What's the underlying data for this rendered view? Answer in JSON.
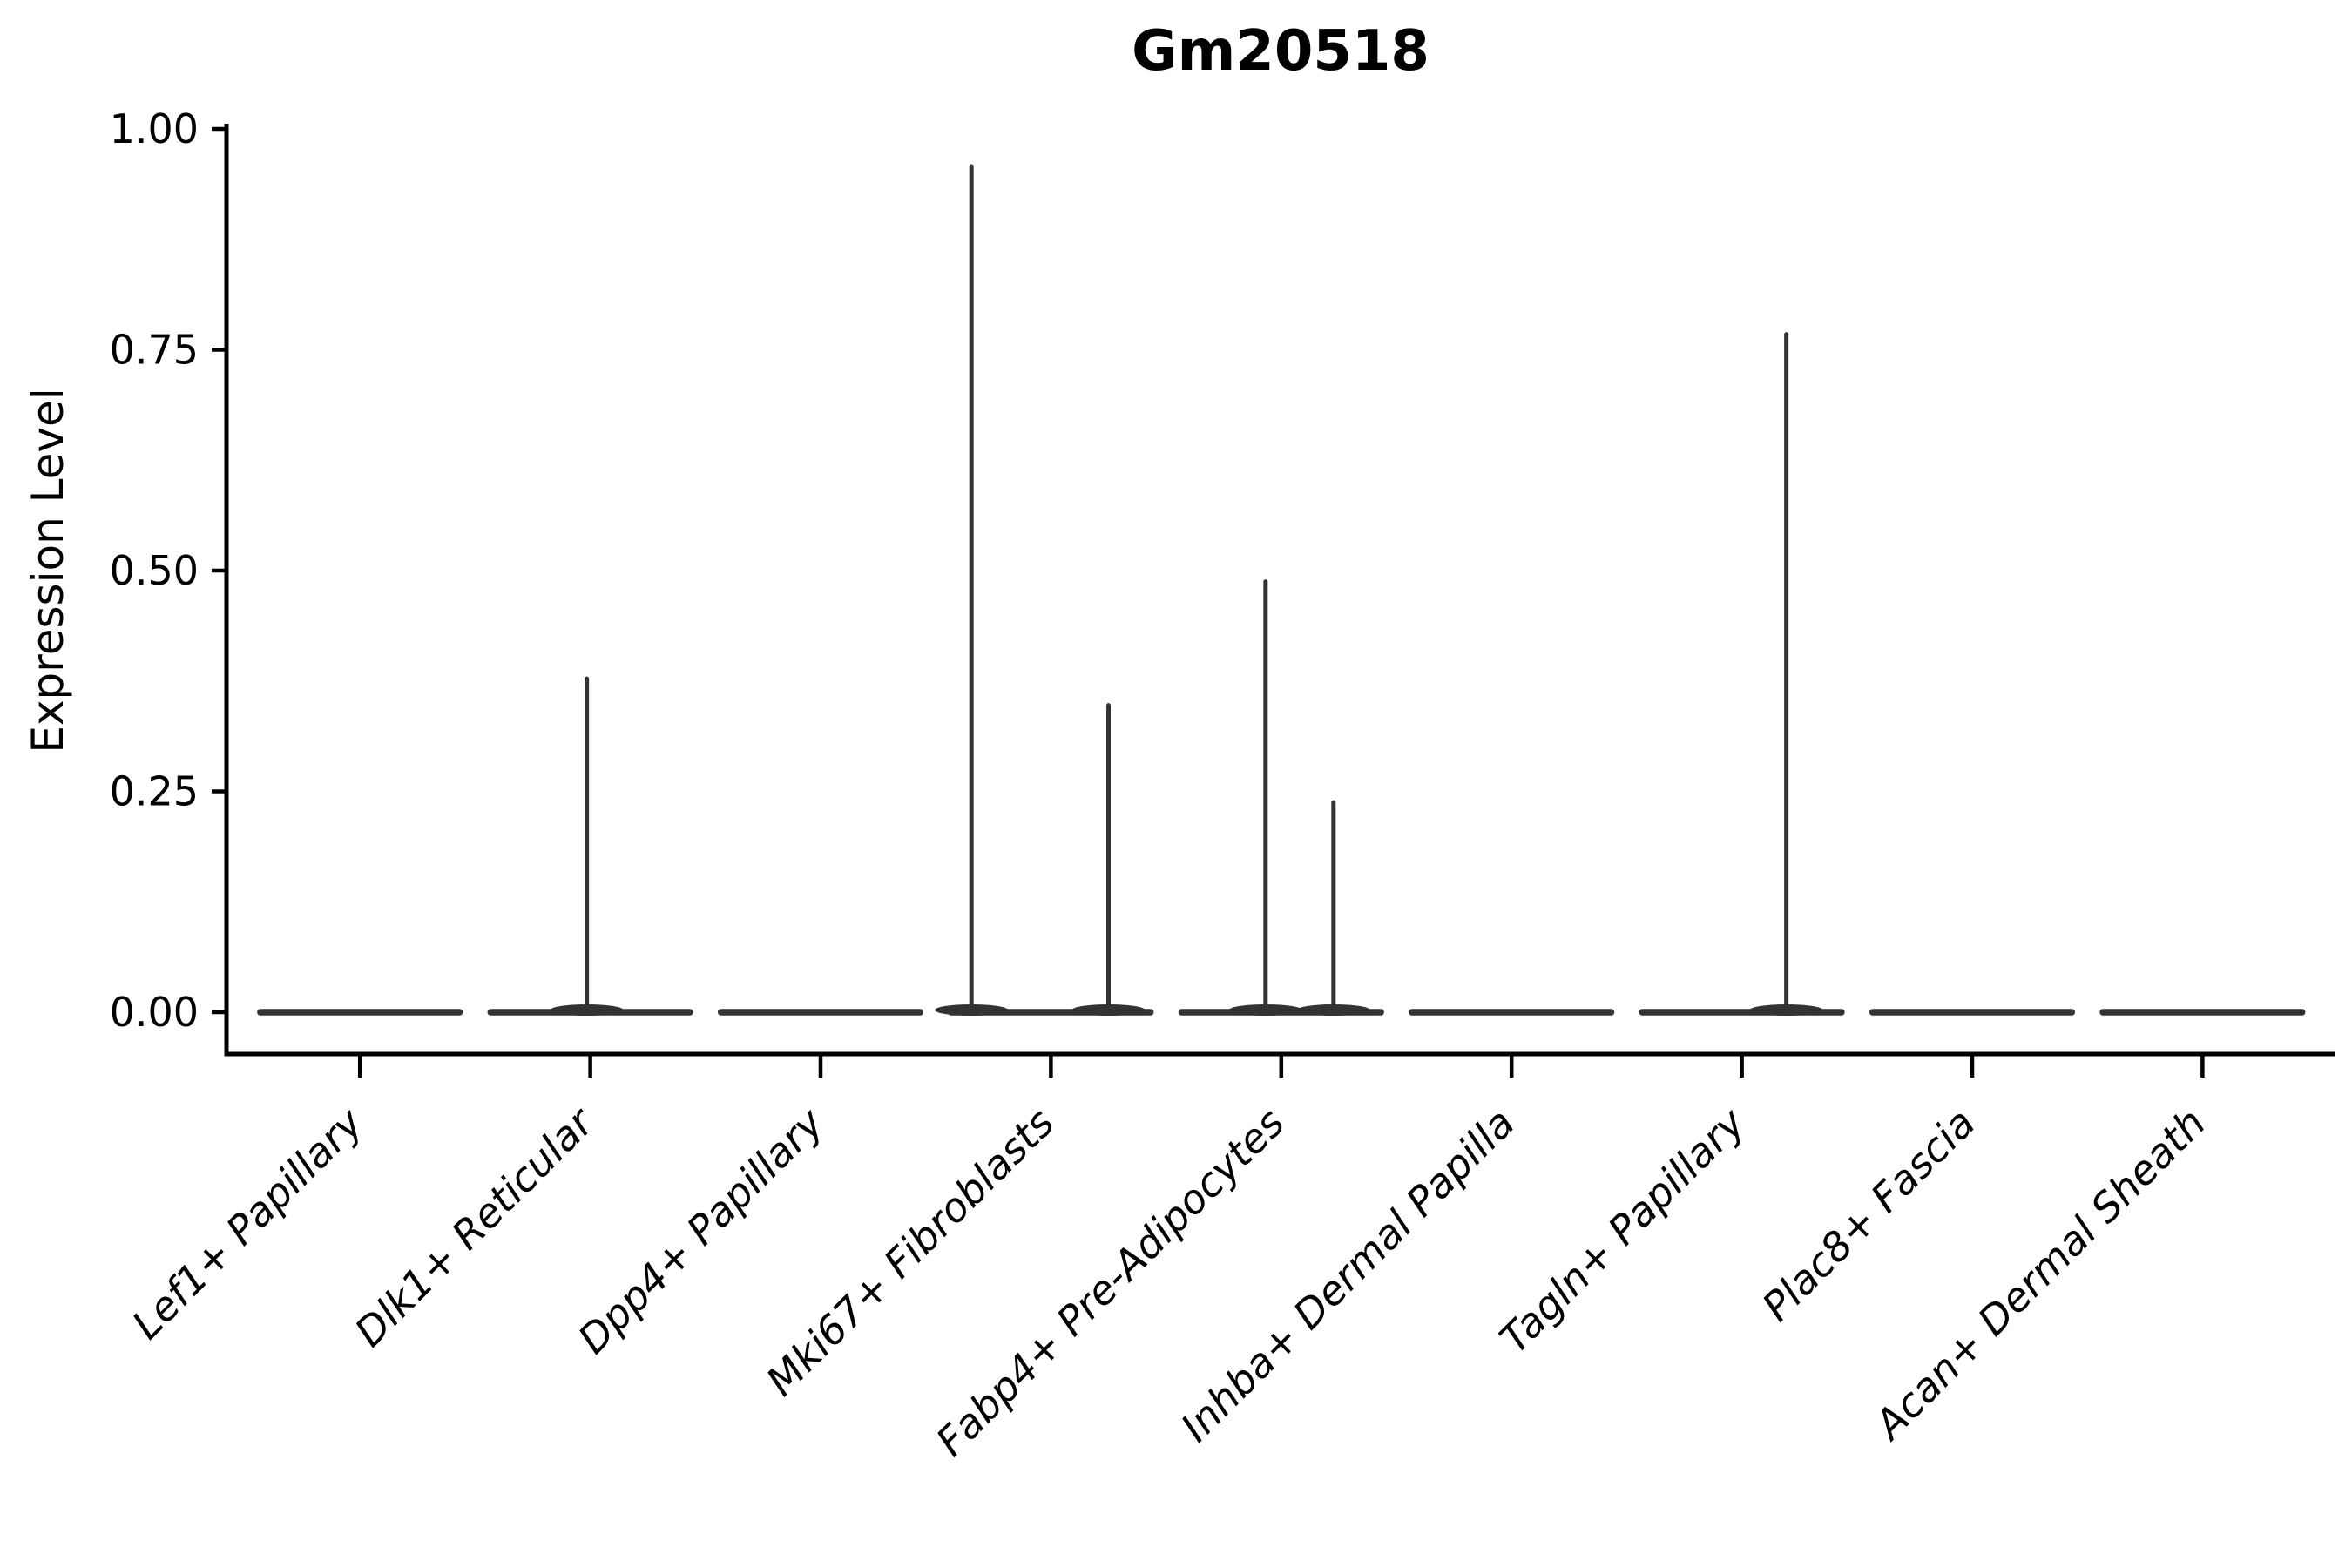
{
  "figure": {
    "background": "#ffffff",
    "text_color": "#000000"
  },
  "chart_data": {
    "type": "violin",
    "title": "Gm20518",
    "ylabel": "Expression Level",
    "xlabel": "",
    "ylim": [
      0,
      1
    ],
    "grid": false,
    "legend": "none",
    "axis_color": "#000000",
    "violin_color": "#333333",
    "yticks": [
      {
        "label": "0.00",
        "value": 0.0
      },
      {
        "label": "0.25",
        "value": 0.25
      },
      {
        "label": "0.50",
        "value": 0.5
      },
      {
        "label": "0.75",
        "value": 0.75
      },
      {
        "label": "1.00",
        "value": 1.0
      }
    ],
    "categories": [
      "Lef1+ Papillary",
      "Dlk1+ Reticular",
      "Dpp4+ Papillary",
      "Mki67+ Fibroblasts",
      "Fabp4+ Pre-Adipocytes",
      "Inhba+ Dermal Papilla",
      "Tagln+ Papillary",
      "Plac8+ Fascia",
      "Acan+ Dermal Sheath"
    ],
    "violins": [
      {
        "category": "Lef1+ Papillary",
        "baseline_value": 0,
        "spikes": []
      },
      {
        "category": "Dlk1+ Reticular",
        "baseline_value": 0,
        "spikes": [
          {
            "x_offset_frac": -0.015,
            "value": 0.38
          }
        ]
      },
      {
        "category": "Dpp4+ Papillary",
        "baseline_value": 0,
        "spikes": []
      },
      {
        "category": "Mki67+ Fibroblasts",
        "baseline_value": 0,
        "spikes": [
          {
            "x_offset_frac": -0.345,
            "value": 0.96
          },
          {
            "x_offset_frac": 0.25,
            "value": 0.35
          }
        ]
      },
      {
        "category": "Fabp4+ Pre-Adipocytes",
        "baseline_value": 0,
        "spikes": [
          {
            "x_offset_frac": -0.068,
            "value": 0.49
          },
          {
            "x_offset_frac": 0.227,
            "value": 0.24
          }
        ]
      },
      {
        "category": "Inhba+ Dermal Papilla",
        "baseline_value": 0,
        "spikes": []
      },
      {
        "category": "Tagln+ Papillary",
        "baseline_value": 0,
        "spikes": [
          {
            "x_offset_frac": 0.193,
            "value": 0.77
          }
        ]
      },
      {
        "category": "Plac8+ Fascia",
        "baseline_value": 0,
        "spikes": []
      },
      {
        "category": "Acan+ Dermal Sheath",
        "baseline_value": 0,
        "spikes": []
      }
    ]
  }
}
